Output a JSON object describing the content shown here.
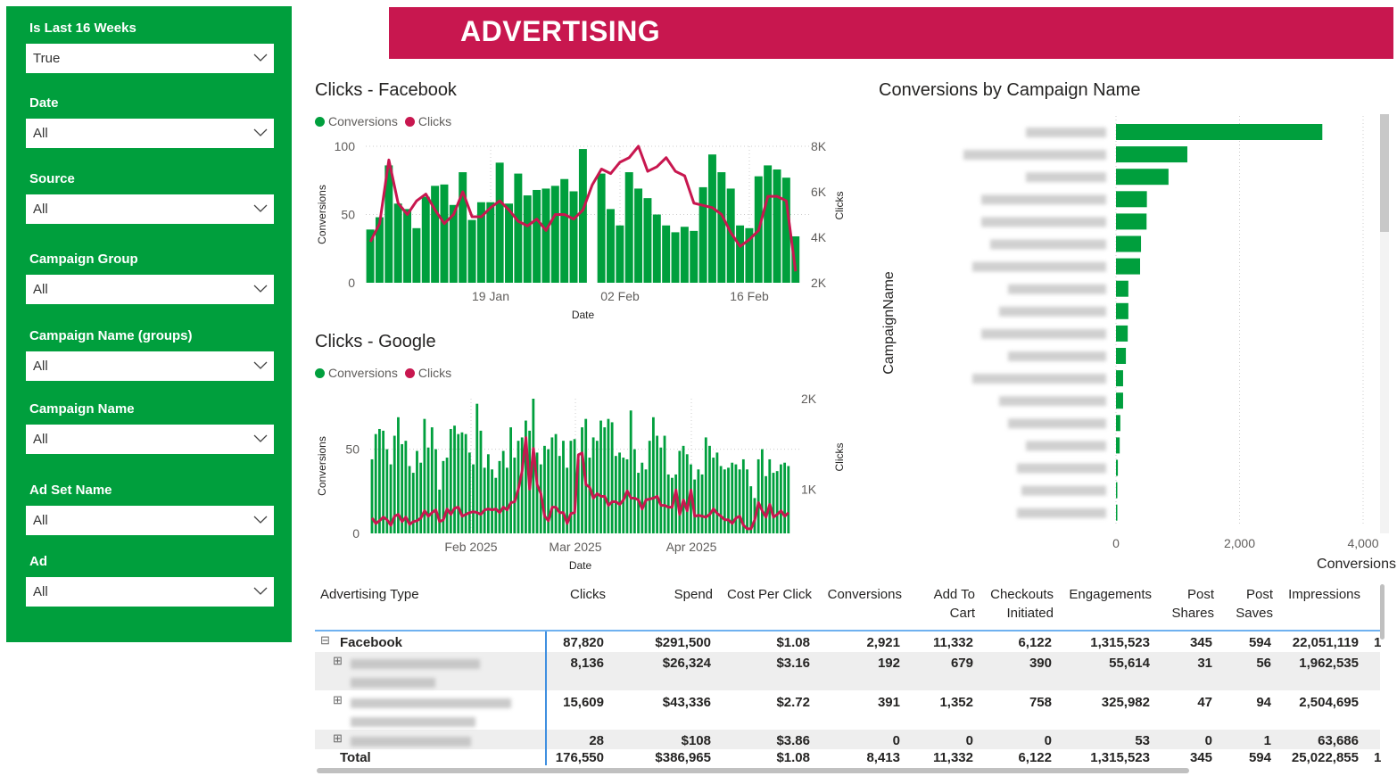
{
  "header": {
    "title": "ADVERTISING",
    "color": "#C8174F"
  },
  "slicers": [
    {
      "label": "Is Last 16 Weeks",
      "value": "True"
    },
    {
      "label": "Date",
      "value": "All"
    },
    {
      "label": "Source",
      "value": "All"
    },
    {
      "label": "Campaign Group",
      "value": "All"
    },
    {
      "label": "Campaign Name (groups)",
      "value": "All"
    },
    {
      "label": "Campaign Name",
      "value": "All"
    },
    {
      "label": "Ad Set Name",
      "value": "All"
    },
    {
      "label": "Ad",
      "value": "All"
    }
  ],
  "colors": {
    "conversions": "#009F3D",
    "clicks": "#C8174F",
    "panel": "#009F3D"
  },
  "chart_data": [
    {
      "type": "bar+line",
      "title": "Clicks - Facebook",
      "legend": [
        "Conversions",
        "Clicks"
      ],
      "legend_position": "top-left",
      "xlabel": "Date",
      "ylabel": "Conversions",
      "y2label": "Clicks",
      "x_ticks": [
        "19 Jan",
        "02 Feb",
        "16 Feb"
      ],
      "y_ticks": [
        "0",
        "50",
        "100"
      ],
      "y2_ticks": [
        "2K",
        "4K",
        "6K",
        "8K"
      ],
      "ylim": [
        0,
        100
      ],
      "y2lim": [
        2000,
        8000
      ],
      "x_start": "2025-01-06",
      "conversions": [
        39,
        48,
        86,
        58,
        54,
        40,
        63,
        71,
        72,
        57,
        81,
        46,
        59,
        59,
        88,
        58,
        80,
        64,
        68,
        69,
        71,
        76,
        67,
        98,
        0,
        80,
        54,
        42,
        81,
        69,
        62,
        50,
        42,
        37,
        41,
        38,
        70,
        94,
        81,
        69,
        42,
        40,
        78,
        86,
        83,
        77,
        34
      ],
      "clicks": [
        3800,
        4600,
        7400,
        5500,
        5000,
        5600,
        5900,
        5200,
        4600,
        5000,
        6000,
        4900,
        4900,
        5300,
        5600,
        5200,
        4700,
        4500,
        4800,
        4300,
        5000,
        5000,
        4800,
        5200,
        6300,
        7000,
        6800,
        7300,
        7500,
        8000,
        6900,
        7100,
        7500,
        6900,
        6700,
        5500,
        5400,
        5300,
        5000,
        4200,
        3600,
        3900,
        4300,
        5800,
        5800,
        5600,
        2500
      ]
    },
    {
      "type": "bar+line",
      "title": "Clicks - Google",
      "legend": [
        "Conversions",
        "Clicks"
      ],
      "legend_position": "top-left",
      "xlabel": "Date",
      "ylabel": "Conversions",
      "y2label": "Clicks",
      "x_ticks": [
        "Feb 2025",
        "Mar 2025",
        "Apr 2025"
      ],
      "y_ticks": [
        "0",
        "50"
      ],
      "y2_ticks": [
        "1K",
        "2K"
      ],
      "ylim": [
        0,
        80
      ],
      "y2lim": [
        510,
        2000
      ],
      "x_start": "2025-01-06",
      "conversions": [
        44,
        59,
        62,
        61,
        50,
        41,
        58,
        69,
        53,
        55,
        40,
        36,
        49,
        42,
        68,
        51,
        63,
        50,
        26,
        43,
        45,
        62,
        64,
        59,
        60,
        59,
        48,
        41,
        77,
        61,
        39,
        47,
        38,
        33,
        43,
        49,
        39,
        63,
        45,
        55,
        57,
        67,
        61,
        80,
        48,
        41,
        52,
        50,
        57,
        59,
        46,
        55,
        39,
        55,
        56,
        44,
        63,
        68,
        45,
        57,
        55,
        67,
        63,
        68,
        66,
        46,
        48,
        45,
        44,
        73,
        50,
        36,
        42,
        38,
        55,
        69,
        58,
        51,
        58,
        35,
        33,
        35,
        49,
        52,
        47,
        41,
        32,
        38,
        35,
        57,
        52,
        45,
        48,
        40,
        38,
        39,
        42,
        41,
        38,
        44,
        38,
        28,
        21,
        44,
        50,
        34,
        44,
        36,
        37,
        41,
        42,
        40
      ],
      "clicks": [
        680,
        620,
        650,
        690,
        660,
        600,
        700,
        720,
        640,
        690,
        610,
        640,
        650,
        680,
        760,
        700,
        740,
        770,
        640,
        660,
        780,
        720,
        790,
        800,
        700,
        720,
        740,
        750,
        740,
        720,
        770,
        780,
        770,
        780,
        740,
        800,
        770,
        850,
        860,
        1000,
        1200,
        1570,
        1000,
        1450,
        1050,
        950,
        700,
        650,
        800,
        800,
        740,
        740,
        620,
        730,
        740,
        1380,
        1400,
        1050,
        1020,
        900,
        950,
        920,
        920,
        820,
        860,
        860,
        830,
        880,
        980,
        900,
        900,
        880,
        780,
        880,
        890,
        900,
        920,
        820,
        820,
        800,
        800,
        990,
        720,
        880,
        760,
        990,
        700,
        710,
        700,
        690,
        720,
        780,
        730,
        700,
        660,
        660,
        620,
        680,
        700,
        600,
        560,
        560,
        660,
        850,
        760,
        690,
        830,
        690,
        720,
        760,
        700,
        740
      ]
    },
    {
      "type": "bar",
      "orientation": "horizontal",
      "title": "Conversions by Campaign Name",
      "xlabel": "Conversions",
      "ylabel": "CampaignName",
      "x_ticks": [
        "0",
        "2,000",
        "4,000"
      ],
      "xlim": [
        0,
        4000
      ],
      "values": [
        3340,
        1155,
        850,
        500,
        495,
        405,
        390,
        200,
        200,
        190,
        160,
        115,
        115,
        70,
        60,
        30,
        15,
        5
      ]
    }
  ],
  "table": {
    "columns": [
      "Advertising Type",
      "Clicks",
      "Spend",
      "Cost Per Click",
      "Conversions",
      "Add To Cart",
      "Checkouts Initiated",
      "Engagements",
      "Post Shares",
      "Post Saves",
      "Impressions"
    ],
    "column_lines": [
      [
        "Advertising Type"
      ],
      [
        "Clicks"
      ],
      [
        "Spend"
      ],
      [
        "Cost Per Click"
      ],
      [
        "Conversions"
      ],
      [
        "Add To",
        "Cart"
      ],
      [
        "Checkouts",
        "Initiated"
      ],
      [
        "Engagements"
      ],
      [
        "Post",
        "Shares"
      ],
      [
        "Post",
        "Saves"
      ],
      [
        "Impressions"
      ]
    ],
    "rows": [
      {
        "name": "Facebook",
        "expander": "⊟",
        "values": [
          "87,820",
          "$291,500",
          "$1.08",
          "2,921",
          "11,332",
          "6,122",
          "1,315,523",
          "345",
          "594",
          "22,051,119"
        ],
        "overflow": "1"
      },
      {
        "name": "",
        "expander": "⊞",
        "values": [
          "8,136",
          "$26,324",
          "$3.16",
          "192",
          "679",
          "390",
          "55,614",
          "31",
          "56",
          "1,962,535"
        ]
      },
      {
        "name": "",
        "expander": "⊞",
        "values": [
          "15,609",
          "$43,336",
          "$2.72",
          "391",
          "1,352",
          "758",
          "325,982",
          "47",
          "94",
          "2,504,695"
        ]
      },
      {
        "name": "",
        "expander": "⊞",
        "values": [
          "28",
          "$108",
          "$3.86",
          "0",
          "0",
          "0",
          "53",
          "0",
          "1",
          "63,686"
        ]
      }
    ],
    "total": {
      "name": "Total",
      "values": [
        "176,550",
        "$386,965",
        "$1.08",
        "8,413",
        "11,332",
        "6,122",
        "1,315,523",
        "345",
        "594",
        "25,022,855"
      ],
      "overflow": "1"
    }
  }
}
